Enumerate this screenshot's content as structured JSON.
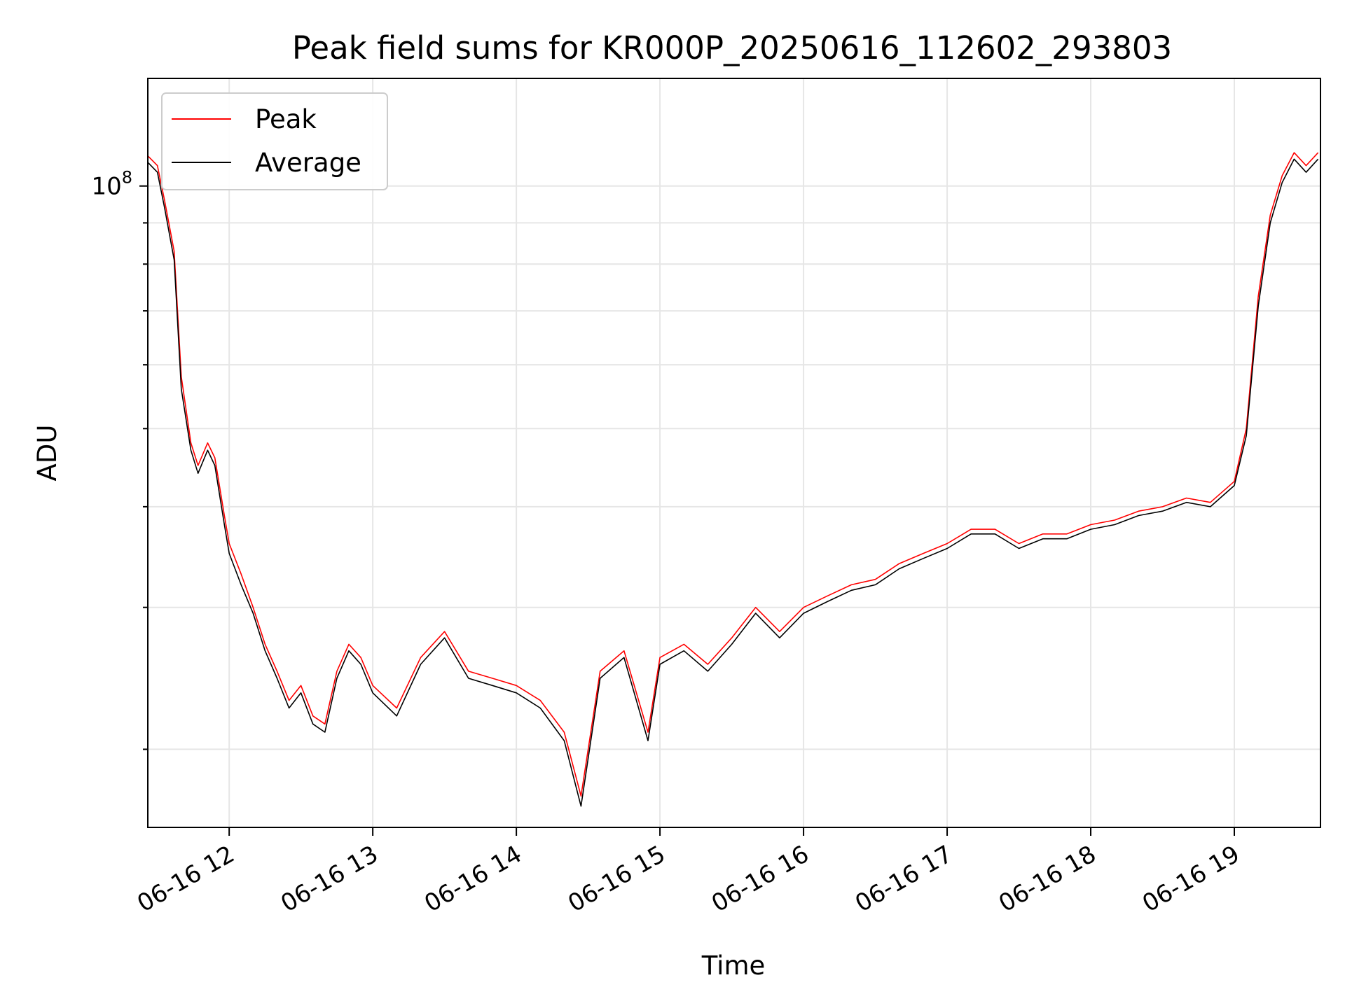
{
  "chart_data": {
    "type": "line",
    "title": "Peak field sums for KR000P_20250616_112602_293803",
    "xlabel": "Time",
    "ylabel": "ADU",
    "yscale": "log",
    "grid": true,
    "legend_position": "top-left",
    "xlim": [
      "06-16 11:26",
      "06-16 19:36"
    ],
    "ylim": [
      16000000,
      136000000
    ],
    "x_ticks": [
      "06-16 12",
      "06-16 13",
      "06-16 14",
      "06-16 15",
      "06-16 16",
      "06-16 17",
      "06-16 18",
      "06-16 19"
    ],
    "y_tick_major": {
      "value": 100000000,
      "base": "10",
      "exponent": "8"
    },
    "y_minor_ticks": [
      20000000,
      30000000,
      40000000,
      50000000,
      60000000,
      70000000,
      80000000,
      90000000
    ],
    "colors": {
      "peak": "#ff0000",
      "average": "#000000"
    },
    "series": [
      {
        "name": "Peak",
        "color": "#ff0000",
        "x": [
          "06-16 11:26",
          "06-16 11:30",
          "06-16 11:33",
          "06-16 11:37",
          "06-16 11:40",
          "06-16 11:44",
          "06-16 11:47",
          "06-16 11:51",
          "06-16 11:54",
          "06-16 11:58",
          "06-16 12:00",
          "06-16 12:05",
          "06-16 12:10",
          "06-16 12:15",
          "06-16 12:20",
          "06-16 12:25",
          "06-16 12:30",
          "06-16 12:35",
          "06-16 12:40",
          "06-16 12:45",
          "06-16 12:50",
          "06-16 12:55",
          "06-16 13:00",
          "06-16 13:10",
          "06-16 13:20",
          "06-16 13:30",
          "06-16 13:40",
          "06-16 13:50",
          "06-16 14:00",
          "06-16 14:10",
          "06-16 14:20",
          "06-16 14:27",
          "06-16 14:35",
          "06-16 14:45",
          "06-16 14:55",
          "06-16 15:00",
          "06-16 15:10",
          "06-16 15:20",
          "06-16 15:30",
          "06-16 15:40",
          "06-16 15:50",
          "06-16 16:00",
          "06-16 16:10",
          "06-16 16:20",
          "06-16 16:30",
          "06-16 16:40",
          "06-16 16:50",
          "06-16 17:00",
          "06-16 17:10",
          "06-16 17:20",
          "06-16 17:30",
          "06-16 17:40",
          "06-16 17:50",
          "06-16 18:00",
          "06-16 18:10",
          "06-16 18:20",
          "06-16 18:30",
          "06-16 18:40",
          "06-16 18:50",
          "06-16 19:00",
          "06-16 19:05",
          "06-16 19:10",
          "06-16 19:15",
          "06-16 19:20",
          "06-16 19:25",
          "06-16 19:30",
          "06-16 19:35"
        ],
        "y": [
          109000000,
          106000000,
          96000000,
          83000000,
          58000000,
          48000000,
          45000000,
          48000000,
          46000000,
          39000000,
          36000000,
          33000000,
          30000000,
          27000000,
          25000000,
          23000000,
          24000000,
          22000000,
          21500000,
          25000000,
          27000000,
          26000000,
          24000000,
          22500000,
          26000000,
          28000000,
          25000000,
          24500000,
          24000000,
          23000000,
          21000000,
          17500000,
          25000000,
          26500000,
          21000000,
          26000000,
          27000000,
          25500000,
          27500000,
          30000000,
          28000000,
          30000000,
          31000000,
          32000000,
          32500000,
          34000000,
          35000000,
          36000000,
          37500000,
          37500000,
          36000000,
          37000000,
          37000000,
          38000000,
          38500000,
          39500000,
          40000000,
          41000000,
          40500000,
          43000000,
          50000000,
          73000000,
          92000000,
          103000000,
          110000000,
          106000000,
          110000000
        ]
      },
      {
        "name": "Average",
        "color": "#000000",
        "x": [
          "06-16 11:26",
          "06-16 11:30",
          "06-16 11:33",
          "06-16 11:37",
          "06-16 11:40",
          "06-16 11:44",
          "06-16 11:47",
          "06-16 11:51",
          "06-16 11:54",
          "06-16 11:58",
          "06-16 12:00",
          "06-16 12:05",
          "06-16 12:10",
          "06-16 12:15",
          "06-16 12:20",
          "06-16 12:25",
          "06-16 12:30",
          "06-16 12:35",
          "06-16 12:40",
          "06-16 12:45",
          "06-16 12:50",
          "06-16 12:55",
          "06-16 13:00",
          "06-16 13:10",
          "06-16 13:20",
          "06-16 13:30",
          "06-16 13:40",
          "06-16 13:50",
          "06-16 14:00",
          "06-16 14:10",
          "06-16 14:20",
          "06-16 14:27",
          "06-16 14:35",
          "06-16 14:45",
          "06-16 14:55",
          "06-16 15:00",
          "06-16 15:10",
          "06-16 15:20",
          "06-16 15:30",
          "06-16 15:40",
          "06-16 15:50",
          "06-16 16:00",
          "06-16 16:10",
          "06-16 16:20",
          "06-16 16:30",
          "06-16 16:40",
          "06-16 16:50",
          "06-16 17:00",
          "06-16 17:10",
          "06-16 17:20",
          "06-16 17:30",
          "06-16 17:40",
          "06-16 17:50",
          "06-16 18:00",
          "06-16 18:10",
          "06-16 18:20",
          "06-16 18:30",
          "06-16 18:40",
          "06-16 18:50",
          "06-16 19:00",
          "06-16 19:05",
          "06-16 19:10",
          "06-16 19:15",
          "06-16 19:20",
          "06-16 19:25",
          "06-16 19:30",
          "06-16 19:35"
        ],
        "y": [
          107000000,
          104000000,
          94000000,
          81000000,
          56000000,
          47000000,
          44000000,
          47000000,
          45000000,
          38000000,
          35000000,
          32000000,
          29500000,
          26500000,
          24500000,
          22500000,
          23500000,
          21500000,
          21000000,
          24500000,
          26500000,
          25500000,
          23500000,
          22000000,
          25500000,
          27500000,
          24500000,
          24000000,
          23500000,
          22500000,
          20500000,
          17000000,
          24500000,
          26000000,
          20500000,
          25500000,
          26500000,
          25000000,
          27000000,
          29500000,
          27500000,
          29500000,
          30500000,
          31500000,
          32000000,
          33500000,
          34500000,
          35500000,
          37000000,
          37000000,
          35500000,
          36500000,
          36500000,
          37500000,
          38000000,
          39000000,
          39500000,
          40500000,
          40000000,
          42500000,
          49000000,
          71000000,
          90000000,
          101000000,
          108000000,
          104000000,
          108000000
        ]
      }
    ]
  }
}
